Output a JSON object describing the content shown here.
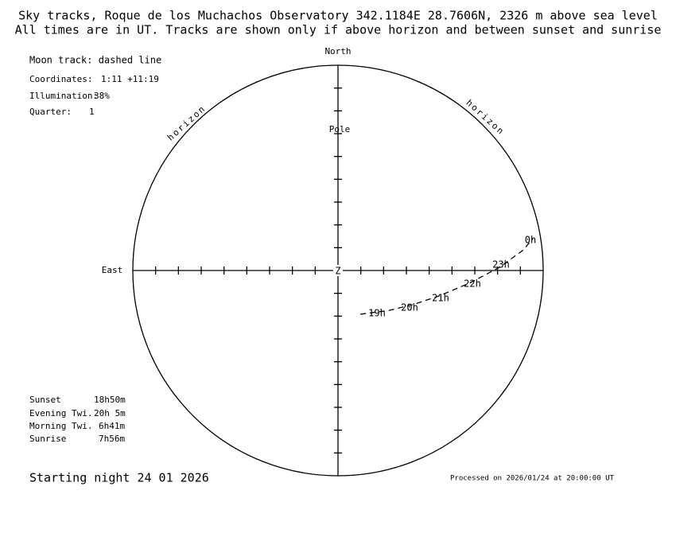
{
  "header": {
    "title": "Sky tracks, Roque de los Muchachos Observatory 342.1184E  28.7606N, 2326 m above sea level",
    "subtitle": "All times are in UT. Tracks are shown only if above horizon and between sunset and sunrise"
  },
  "info": {
    "moon_track": "Moon track: dashed line",
    "coordinates_label": "Coordinates:",
    "coordinates": "1:11 +11:19",
    "illumination_label": "Illumination:",
    "illumination": "38%",
    "quarter_label": "Quarter:",
    "quarter": "1"
  },
  "sky": {
    "north": "North",
    "east": "East",
    "pole": "Pole",
    "zenith": "Z",
    "horizon_left": "horizon",
    "horizon_right": "horizon",
    "hours": [
      "19h",
      "20h",
      "21h",
      "22h",
      "23h",
      "0h"
    ]
  },
  "times": [
    [
      "Sunset",
      "18h50m"
    ],
    [
      "Evening Twi.",
      "20h 5m"
    ],
    [
      "Morning Twi.",
      "6h41m"
    ],
    [
      "Sunrise",
      "7h56m"
    ]
  ],
  "footer": {
    "night": "Starting night 24 01 2026",
    "processed": "Processed on 2026/01/24 at 20:00:00 UT"
  }
}
